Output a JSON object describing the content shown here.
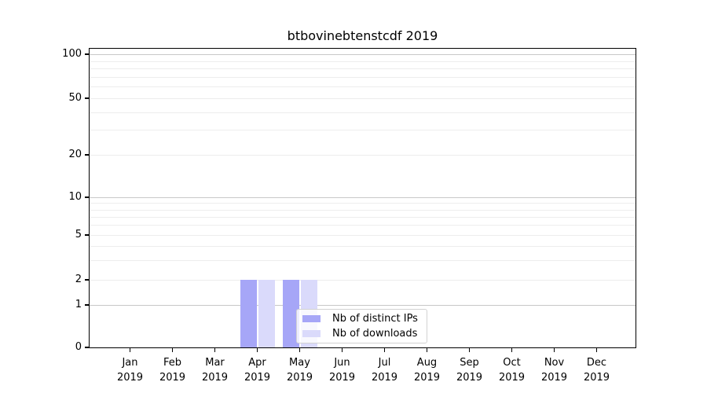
{
  "figure": {
    "background": "#ffffff",
    "text_color": "#000000",
    "spine_color": "#000000"
  },
  "chart_data": {
    "type": "bar",
    "title": "btbovinebtenstcdf 2019",
    "categories": [
      "Jan 2019",
      "Feb 2019",
      "Mar 2019",
      "Apr 2019",
      "May 2019",
      "Jun 2019",
      "Jul 2019",
      "Aug 2019",
      "Sep 2019",
      "Oct 2019",
      "Nov 2019",
      "Dec 2019"
    ],
    "series": [
      {
        "name": "Nb of distinct IPs",
        "color": "#a6a6f7",
        "values": [
          0,
          0,
          0,
          2,
          2,
          0,
          0,
          0,
          0,
          0,
          0,
          0
        ]
      },
      {
        "name": "Nb of downloads",
        "color": "#dadafb",
        "values": [
          0,
          0,
          0,
          2,
          2,
          0,
          0,
          0,
          0,
          0,
          0,
          0
        ]
      }
    ],
    "xlabel": "",
    "ylabel": "",
    "y_axis": {
      "scale": "symlog",
      "tick_values": [
        100,
        50,
        20,
        10,
        5,
        2,
        1,
        0
      ],
      "tick_labels": [
        "100",
        "50",
        "20",
        "10",
        "5",
        "2",
        "1",
        "0"
      ],
      "min": 0,
      "max": 140
    },
    "grid": {
      "axis": "y",
      "major_color": "#c8c8c8",
      "minor_color": "#ededed"
    },
    "legend": {
      "location": "inside-lower-center",
      "entries": [
        "Nb of distinct IPs",
        "Nb of downloads"
      ]
    }
  }
}
